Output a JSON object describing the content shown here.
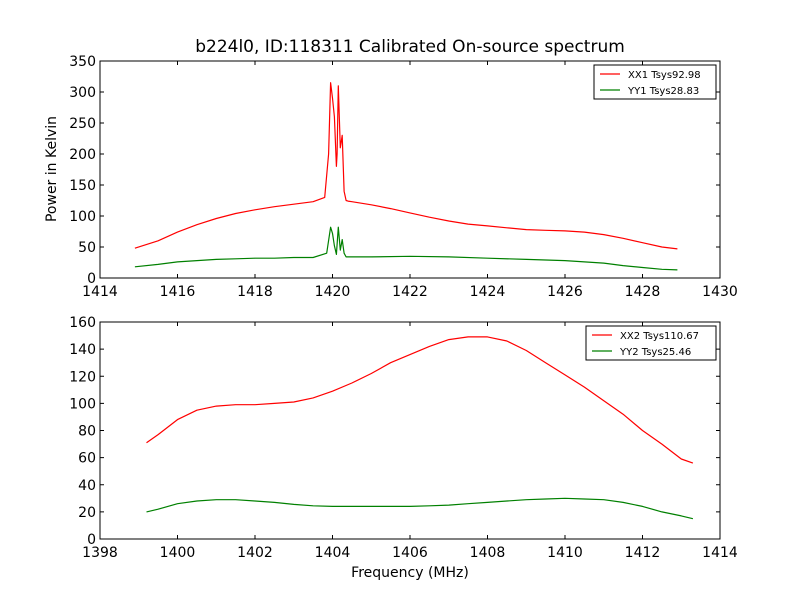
{
  "chart_data": [
    {
      "type": "line",
      "title": "b224l0, ID:118311 Calibrated On-source spectrum",
      "xlabel": "",
      "ylabel": "Power in Kelvin",
      "xlim": [
        1414,
        1430
      ],
      "ylim": [
        0,
        350
      ],
      "xticks": [
        1414,
        1416,
        1418,
        1420,
        1422,
        1424,
        1426,
        1428,
        1430
      ],
      "yticks": [
        0,
        50,
        100,
        150,
        200,
        250,
        300,
        350
      ],
      "grid": false,
      "legend_position": "top-right",
      "series": [
        {
          "name": "XX1 Tsys92.98",
          "color": "#ff0000",
          "x": [
            1414.9,
            1415.5,
            1416,
            1416.5,
            1417,
            1417.5,
            1418,
            1418.5,
            1419,
            1419.5,
            1419.8,
            1419.9,
            1419.95,
            1420.0,
            1420.05,
            1420.1,
            1420.12,
            1420.15,
            1420.2,
            1420.25,
            1420.3,
            1420.35,
            1420.4,
            1420.5,
            1421,
            1421.5,
            1422,
            1422.5,
            1423,
            1423.5,
            1424,
            1424.5,
            1425,
            1425.5,
            1426,
            1426.5,
            1427,
            1427.5,
            1428,
            1428.5,
            1428.9
          ],
          "y": [
            48,
            60,
            74,
            86,
            96,
            104,
            110,
            115,
            119,
            123,
            130,
            200,
            315,
            290,
            260,
            180,
            200,
            310,
            210,
            230,
            140,
            125,
            124,
            123,
            118,
            112,
            105,
            98,
            92,
            87,
            84,
            81,
            78,
            77,
            76,
            74,
            70,
            64,
            57,
            50,
            47
          ]
        },
        {
          "name": "YY1 Tsys28.83",
          "color": "#008000",
          "x": [
            1414.9,
            1415.5,
            1416,
            1416.5,
            1417,
            1417.5,
            1418,
            1418.5,
            1419,
            1419.5,
            1419.85,
            1419.95,
            1420.0,
            1420.05,
            1420.1,
            1420.15,
            1420.2,
            1420.25,
            1420.3,
            1420.35,
            1420.5,
            1421,
            1422,
            1423,
            1424,
            1425,
            1426,
            1426.5,
            1427,
            1427.5,
            1428,
            1428.5,
            1428.9
          ],
          "y": [
            18,
            22,
            26,
            28,
            30,
            31,
            32,
            32,
            33,
            33,
            40,
            82,
            72,
            52,
            38,
            82,
            45,
            62,
            40,
            34,
            34,
            34,
            35,
            34,
            32,
            30,
            28,
            26,
            24,
            20,
            17,
            14,
            13
          ]
        }
      ]
    },
    {
      "type": "line",
      "title": "",
      "xlabel": "Frequency (MHz)",
      "ylabel": "",
      "xlim": [
        1398,
        1414
      ],
      "ylim": [
        0,
        160
      ],
      "xticks": [
        1398,
        1400,
        1402,
        1404,
        1406,
        1408,
        1410,
        1412,
        1414
      ],
      "yticks": [
        0,
        20,
        40,
        60,
        80,
        100,
        120,
        140,
        160
      ],
      "grid": false,
      "legend_position": "top-right",
      "series": [
        {
          "name": "XX2 Tsys110.67",
          "color": "#ff0000",
          "x": [
            1399.2,
            1399.5,
            1400,
            1400.5,
            1401,
            1401.5,
            1402,
            1402.5,
            1403,
            1403.5,
            1404,
            1404.5,
            1405,
            1405.5,
            1406,
            1406.5,
            1407,
            1407.5,
            1408,
            1408.5,
            1409,
            1409.5,
            1410,
            1410.5,
            1411,
            1411.5,
            1412,
            1412.5,
            1413,
            1413.3
          ],
          "y": [
            71,
            77,
            88,
            95,
            98,
            99,
            99,
            100,
            101,
            104,
            109,
            115,
            122,
            130,
            136,
            142,
            147,
            149,
            149,
            146,
            139,
            130,
            121,
            112,
            102,
            92,
            80,
            70,
            59,
            56
          ]
        },
        {
          "name": "YY2 Tsys25.46",
          "color": "#008000",
          "x": [
            1399.2,
            1399.5,
            1400,
            1400.5,
            1401,
            1401.5,
            1402,
            1402.5,
            1403,
            1403.5,
            1404,
            1404.5,
            1405,
            1405.5,
            1406,
            1406.5,
            1407,
            1407.5,
            1408,
            1408.5,
            1409,
            1409.5,
            1410,
            1410.5,
            1411,
            1411.5,
            1412,
            1412.5,
            1413,
            1413.3
          ],
          "y": [
            20,
            22,
            26,
            28,
            29,
            29,
            28,
            27,
            25.5,
            24.5,
            24,
            24,
            24,
            24,
            24,
            24.5,
            25,
            26,
            27,
            28,
            29,
            29.5,
            30,
            29.5,
            29,
            27,
            24,
            20,
            17,
            15
          ]
        }
      ]
    }
  ]
}
